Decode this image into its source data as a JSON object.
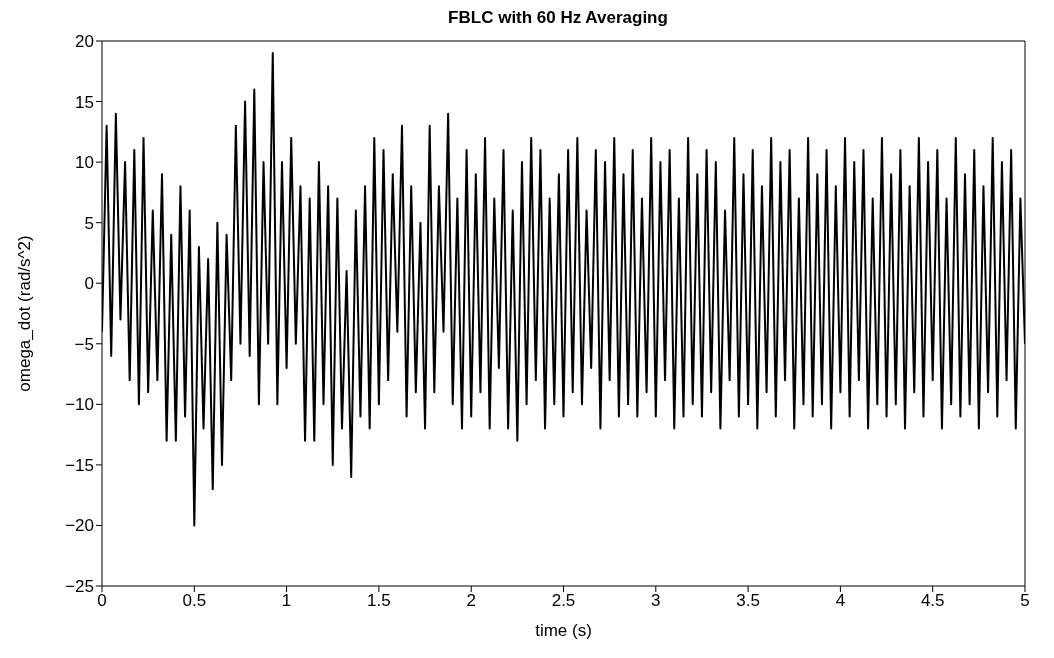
{
  "chart_data": {
    "type": "line",
    "title": "FBLC with 60 Hz Averaging",
    "xlabel": "time (s)",
    "ylabel": "omega_dot (rad/s^2)",
    "xlim": [
      0,
      5
    ],
    "xticks": [
      0,
      0.5,
      1,
      1.5,
      2,
      2.5,
      3,
      3.5,
      4,
      4.5,
      5
    ],
    "ylim": [
      -25,
      20
    ],
    "yticks": [
      -25,
      -20,
      -15,
      -10,
      -5,
      0,
      5,
      10,
      15,
      20
    ],
    "marker": "none",
    "line_style": "solid",
    "x": [
      0,
      0.025,
      0.05,
      0.075,
      0.1,
      0.125,
      0.15,
      0.175,
      0.2,
      0.225,
      0.25,
      0.275,
      0.3,
      0.325,
      0.35,
      0.375,
      0.4,
      0.425,
      0.45,
      0.475,
      0.5,
      0.525,
      0.55,
      0.575,
      0.6,
      0.625,
      0.65,
      0.675,
      0.7,
      0.725,
      0.75,
      0.775,
      0.8,
      0.825,
      0.85,
      0.875,
      0.9,
      0.925,
      0.95,
      0.975,
      1,
      1.025,
      1.05,
      1.075,
      1.1,
      1.125,
      1.15,
      1.175,
      1.2,
      1.225,
      1.25,
      1.275,
      1.3,
      1.325,
      1.35,
      1.375,
      1.4,
      1.425,
      1.45,
      1.475,
      1.5,
      1.525,
      1.55,
      1.575,
      1.6,
      1.625,
      1.65,
      1.675,
      1.7,
      1.725,
      1.75,
      1.775,
      1.8,
      1.825,
      1.85,
      1.875,
      1.9,
      1.925,
      1.95,
      1.975,
      2,
      2.025,
      2.05,
      2.075,
      2.1,
      2.125,
      2.15,
      2.175,
      2.2,
      2.225,
      2.25,
      2.275,
      2.3,
      2.325,
      2.35,
      2.375,
      2.4,
      2.425,
      2.45,
      2.475,
      2.5,
      2.525,
      2.55,
      2.575,
      2.6,
      2.625,
      2.65,
      2.675,
      2.7,
      2.725,
      2.75,
      2.775,
      2.8,
      2.825,
      2.85,
      2.875,
      2.9,
      2.925,
      2.95,
      2.975,
      3,
      3.025,
      3.05,
      3.075,
      3.1,
      3.125,
      3.15,
      3.175,
      3.2,
      3.225,
      3.25,
      3.275,
      3.3,
      3.325,
      3.35,
      3.375,
      3.4,
      3.425,
      3.45,
      3.475,
      3.5,
      3.525,
      3.55,
      3.575,
      3.6,
      3.625,
      3.65,
      3.675,
      3.7,
      3.725,
      3.75,
      3.775,
      3.8,
      3.825,
      3.85,
      3.875,
      3.9,
      3.925,
      3.95,
      3.975,
      4,
      4.025,
      4.05,
      4.075,
      4.1,
      4.125,
      4.15,
      4.175,
      4.2,
      4.225,
      4.25,
      4.275,
      4.3,
      4.325,
      4.35,
      4.375,
      4.4,
      4.425,
      4.45,
      4.475,
      4.5,
      4.525,
      4.55,
      4.575,
      4.6,
      4.625,
      4.65,
      4.675,
      4.7,
      4.725,
      4.75,
      4.775,
      4.8,
      4.825,
      4.85,
      4.875,
      4.9,
      4.925,
      4.95,
      4.975,
      5
    ],
    "series": [
      {
        "color": "#000000",
        "values": [
          -4,
          13,
          -6,
          14,
          -3,
          10,
          -8,
          11,
          -10,
          12,
          -9,
          6,
          -8,
          9,
          -13,
          4,
          -13,
          8,
          -11,
          6,
          -20,
          3,
          -12,
          2,
          -17,
          5,
          -15,
          4,
          -8,
          13,
          -5,
          15,
          -6,
          16,
          -10,
          10,
          -5,
          19,
          -10,
          10,
          -7,
          12,
          -5,
          8,
          -13,
          7,
          -13,
          10,
          -10,
          8,
          -15,
          7,
          -12,
          1,
          -16,
          6,
          -11,
          8,
          -12,
          12,
          -10,
          11,
          -8,
          9,
          -4,
          13,
          -11,
          8,
          -9,
          5,
          -12,
          13,
          -9,
          8,
          -4,
          14,
          -10,
          7,
          -12,
          11,
          -11,
          9,
          -9,
          12,
          -12,
          7,
          -7,
          11,
          -12,
          6,
          -13,
          10,
          -10,
          12,
          -8,
          11,
          -12,
          7,
          -10,
          9,
          -11,
          11,
          -9,
          12,
          -10,
          6,
          -7,
          11,
          -12,
          10,
          -8,
          12,
          -11,
          9,
          -10,
          11,
          -11,
          7,
          -9,
          12,
          -11,
          10,
          -8,
          11,
          -12,
          7,
          -11,
          12,
          -10,
          9,
          -11,
          11,
          -9,
          10,
          -12,
          6,
          -8,
          12,
          -11,
          9,
          -10,
          11,
          -12,
          8,
          -9,
          12,
          -11,
          10,
          -8,
          11,
          -12,
          7,
          -10,
          12,
          -11,
          9,
          -10,
          11,
          -12,
          8,
          -9,
          12,
          -11,
          10,
          -8,
          11,
          -12,
          7,
          -10,
          12,
          -11,
          9,
          -10,
          11,
          -12,
          8,
          -9,
          12,
          -11,
          10,
          -8,
          11,
          -12,
          7,
          -10,
          12,
          -11,
          9,
          -10,
          11,
          -12,
          8,
          -9,
          12,
          -11,
          10,
          -8,
          11,
          -12,
          7,
          -5
        ]
      }
    ]
  }
}
